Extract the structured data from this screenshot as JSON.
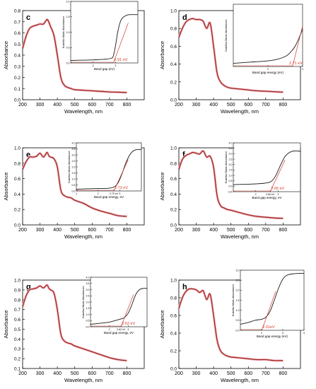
{
  "figure": {
    "colors": {
      "main_curve": "#9e2a1a",
      "main_shadow": "#f2b8c8",
      "inset_curve": "#1a1a1a",
      "tangent": "#d43a2a",
      "axis": "#000000"
    }
  },
  "chart_data": [
    {
      "label": "c",
      "type": "line",
      "xlabel": "Wavelength, nm",
      "ylabel": "Absorbance",
      "xlim": [
        200,
        900
      ],
      "ylim": [
        0.0,
        0.8
      ],
      "xticks": [
        "200",
        "300",
        "400",
        "500",
        "600",
        "700",
        "800"
      ],
      "yticks": [
        "0.0",
        "0.1",
        "0.2",
        "0.3",
        "0.4",
        "0.5",
        "0.6",
        "0.7",
        "0.8"
      ],
      "series": [
        {
          "x": [
            200,
            220,
            240,
            260,
            280,
            300,
            320,
            340,
            350,
            360,
            380,
            400,
            420,
            440,
            460,
            480,
            500,
            550,
            600,
            650,
            700,
            750,
            800
          ],
          "y": [
            0.46,
            0.57,
            0.64,
            0.66,
            0.67,
            0.68,
            0.68,
            0.72,
            0.7,
            0.66,
            0.58,
            0.4,
            0.2,
            0.13,
            0.11,
            0.1,
            0.09,
            0.085,
            0.08,
            0.075,
            0.07,
            0.068,
            0.065
          ]
        }
      ],
      "inset": {
        "xlabel": "Band gap (eV)",
        "ylabel": "Kubelka Munk Absorbance",
        "xlim": [
          1.0,
          4.0
        ],
        "ylim": [
          0.0,
          2.0
        ],
        "xticks": [
          "2",
          "3"
        ],
        "yticks": [
          "0.0",
          "0.5",
          "1.0",
          "1.5",
          "2.0"
        ],
        "annotation": "2.91 eV",
        "annotation_x": 2.91,
        "series": [
          {
            "x": [
              1.0,
              1.5,
              2.0,
              2.5,
              2.8,
              2.9,
              3.0,
              3.1,
              3.2,
              3.3,
              3.5,
              3.7,
              4.0
            ],
            "y": [
              0.08,
              0.09,
              0.1,
              0.12,
              0.15,
              0.22,
              0.55,
              1.0,
              1.3,
              1.45,
              1.55,
              1.57,
              1.57
            ]
          }
        ]
      }
    },
    {
      "label": "d",
      "type": "line",
      "xlabel": "Wavelength, nm",
      "ylabel": "Absorbance",
      "xlim": [
        200,
        900
      ],
      "ylim": [
        0.0,
        1.0
      ],
      "xticks": [
        "200",
        "300",
        "400",
        "500",
        "600",
        "700",
        "800"
      ],
      "yticks": [
        "0.0",
        "0.2",
        "0.4",
        "0.6",
        "0.8",
        "1.0"
      ],
      "series": [
        {
          "x": [
            200,
            220,
            240,
            260,
            280,
            300,
            320,
            340,
            360,
            380,
            400,
            420,
            440,
            460,
            480,
            500,
            550,
            600,
            650,
            700,
            750,
            800
          ],
          "y": [
            0.7,
            0.8,
            0.87,
            0.9,
            0.91,
            0.9,
            0.9,
            0.88,
            0.8,
            0.86,
            0.6,
            0.3,
            0.2,
            0.16,
            0.14,
            0.13,
            0.12,
            0.11,
            0.1,
            0.095,
            0.09,
            0.085
          ]
        }
      ],
      "inset": {
        "xlabel": "Band gap energy (eV)",
        "ylabel": "Kubelka Munk Absorbance",
        "xlim": [
          1.0,
          3.0
        ],
        "ylim": [
          0.0,
          1.0
        ],
        "xticks": [
          "2",
          "3"
        ],
        "yticks": [],
        "annotation": "2.71 eV",
        "annotation_x": 2.71,
        "series": [
          {
            "x": [
              1.0,
              1.5,
              2.0,
              2.3,
              2.5,
              2.6,
              2.7,
              2.8,
              2.9,
              3.0
            ],
            "y": [
              0.05,
              0.07,
              0.09,
              0.12,
              0.16,
              0.2,
              0.26,
              0.34,
              0.46,
              0.6
            ]
          }
        ]
      }
    },
    {
      "label": "e",
      "type": "line",
      "xlabel": "Wavelength, nm",
      "ylabel": "Absorbance",
      "xlim": [
        200,
        900
      ],
      "ylim": [
        0.0,
        1.0
      ],
      "xticks": [
        "200",
        "300",
        "400",
        "500",
        "600",
        "700",
        "800"
      ],
      "yticks": [
        "0.0",
        "0.2",
        "0.4",
        "0.6",
        "0.8",
        "1.0"
      ],
      "series": [
        {
          "x": [
            200,
            220,
            240,
            260,
            280,
            300,
            320,
            340,
            350,
            360,
            380,
            400,
            420,
            440,
            460,
            480,
            500,
            550,
            600,
            650,
            700,
            750,
            800
          ],
          "y": [
            0.72,
            0.82,
            0.88,
            0.88,
            0.89,
            0.93,
            0.88,
            0.94,
            0.9,
            0.88,
            0.86,
            0.75,
            0.45,
            0.38,
            0.36,
            0.35,
            0.32,
            0.28,
            0.22,
            0.18,
            0.15,
            0.12,
            0.11
          ]
        }
      ],
      "inset": {
        "xlabel": "Band gap energy, eV",
        "ylabel": "Kubelka Munk Absorbance",
        "xlim": [
          1.0,
          4.0
        ],
        "ylim": [
          0.0,
          4.0
        ],
        "xticks": [
          "1",
          "2",
          "2.73 eV",
          "3"
        ],
        "yticks": [
          "0.0",
          "0.5",
          "1.0",
          "1.5",
          "2.0",
          "2.5",
          "3.0",
          "3.5",
          "4.0"
        ],
        "annotation": "2.73 eV",
        "annotation_x": 2.73,
        "series": [
          {
            "x": [
              1.0,
              1.5,
              2.0,
              2.4,
              2.7,
              2.9,
              3.1,
              3.3,
              3.5,
              3.7,
              3.9,
              4.0
            ],
            "y": [
              0.15,
              0.18,
              0.2,
              0.22,
              0.3,
              0.6,
              1.4,
              2.4,
              3.1,
              3.4,
              3.45,
              3.45
            ]
          }
        ]
      }
    },
    {
      "label": "f",
      "type": "line",
      "xlabel": "Wavelength, nm",
      "ylabel": "Absorbance",
      "xlim": [
        200,
        900
      ],
      "ylim": [
        0.0,
        1.0
      ],
      "xticks": [
        "200",
        "300",
        "400",
        "500",
        "600",
        "700",
        "800"
      ],
      "yticks": [
        "0.0",
        "0.2",
        "0.4",
        "0.6",
        "0.8",
        "1.0"
      ],
      "series": [
        {
          "x": [
            200,
            220,
            240,
            260,
            280,
            300,
            320,
            340,
            360,
            380,
            400,
            420,
            440,
            460,
            480,
            500,
            550,
            600,
            650,
            700,
            750,
            800
          ],
          "y": [
            0.72,
            0.85,
            0.9,
            0.92,
            0.94,
            0.93,
            0.92,
            0.96,
            0.88,
            0.89,
            0.75,
            0.38,
            0.25,
            0.22,
            0.2,
            0.19,
            0.16,
            0.13,
            0.11,
            0.1,
            0.09,
            0.085
          ]
        }
      ],
      "inset": {
        "xlabel": "Band gap energy, eV",
        "ylabel": "Kubelka Munk Absorbance",
        "xlim": [
          1.0,
          4.0
        ],
        "ylim": [
          -0.5,
          4.0
        ],
        "xticks": [
          "2",
          "2.65 eV",
          "3"
        ],
        "yticks": [
          "-0.5",
          "0.0",
          "0.5",
          "1.0",
          "1.5",
          "2.0",
          "2.5",
          "3.0",
          "3.5",
          "4.0"
        ],
        "annotation": "2.65 eV",
        "annotation_x": 2.65,
        "series": [
          {
            "x": [
              1.0,
              1.5,
              2.0,
              2.4,
              2.7,
              2.9,
              3.1,
              3.3,
              3.5,
              3.7,
              3.9,
              4.0
            ],
            "y": [
              0.15,
              0.18,
              0.22,
              0.28,
              0.45,
              1.0,
              1.9,
              2.7,
              3.1,
              3.25,
              3.25,
              3.2
            ]
          }
        ]
      }
    },
    {
      "label": "g",
      "type": "line",
      "xlabel": "Wavelength, nm",
      "ylabel": "Absorbance",
      "xlim": [
        200,
        900
      ],
      "ylim": [
        0.1,
        1.0
      ],
      "xticks": [
        "200",
        "300",
        "400",
        "500",
        "600",
        "700",
        "800"
      ],
      "yticks": [
        "0.1",
        "0.2",
        "0.3",
        "0.4",
        "0.5",
        "0.6",
        "0.7",
        "0.8",
        "0.9",
        "1.0"
      ],
      "series": [
        {
          "x": [
            200,
            220,
            240,
            260,
            280,
            300,
            320,
            340,
            350,
            360,
            380,
            400,
            420,
            440,
            460,
            480,
            500,
            550,
            600,
            650,
            700,
            750,
            800
          ],
          "y": [
            0.73,
            0.84,
            0.9,
            0.91,
            0.92,
            0.94,
            0.92,
            0.95,
            0.92,
            0.9,
            0.87,
            0.7,
            0.45,
            0.38,
            0.36,
            0.35,
            0.33,
            0.3,
            0.27,
            0.24,
            0.21,
            0.19,
            0.18
          ]
        }
      ],
      "inset": {
        "xlabel": "Band gap energy, eV",
        "ylabel": "Kubelka Munk Absorbance",
        "xlim": [
          1.0,
          4.0
        ],
        "ylim": [
          0.0,
          4.0
        ],
        "xticks": [
          "2",
          "2.62 eV",
          "3"
        ],
        "yticks": [
          "0.0",
          "0.5",
          "1.0",
          "1.5",
          "2.0",
          "2.5",
          "3.0",
          "3.5",
          "4.0"
        ],
        "annotation": "2.62 eV",
        "annotation_x": 2.62,
        "series": [
          {
            "x": [
              1.0,
              1.5,
              2.0,
              2.3,
              2.6,
              2.8,
              3.0,
              3.2,
              3.4,
              3.6,
              3.8,
              4.0
            ],
            "y": [
              0.2,
              0.28,
              0.38,
              0.5,
              0.62,
              0.75,
              1.1,
              1.8,
              2.6,
              3.0,
              3.1,
              3.1
            ]
          }
        ]
      }
    },
    {
      "label": "h",
      "type": "line",
      "xlabel": "Wavelength, nm",
      "ylabel": "Absorbance",
      "xlim": [
        200,
        900
      ],
      "ylim": [
        0.0,
        1.0
      ],
      "xticks": [
        "200",
        "300",
        "400",
        "500",
        "600",
        "700",
        "800"
      ],
      "yticks": [
        "0.0",
        "0.2",
        "0.4",
        "0.6",
        "0.8",
        "1.0"
      ],
      "series": [
        {
          "x": [
            200,
            220,
            240,
            260,
            280,
            300,
            320,
            340,
            360,
            380,
            400,
            420,
            440,
            460,
            480,
            500,
            550,
            600,
            650,
            700,
            750,
            800
          ],
          "y": [
            0.68,
            0.8,
            0.87,
            0.9,
            0.9,
            0.89,
            0.86,
            0.88,
            0.78,
            0.84,
            0.6,
            0.32,
            0.2,
            0.16,
            0.14,
            0.13,
            0.12,
            0.11,
            0.1,
            0.1,
            0.09,
            0.09
          ]
        }
      ],
      "inset": {
        "xlabel": "Band gap energy (eV)",
        "ylabel": "Kubelka Munk Absorbance",
        "xlim": [
          1.0,
          4.0
        ],
        "ylim": [
          0.0,
          3.0
        ],
        "xticks": [
          "2",
          "3",
          "4"
        ],
        "yticks": [
          "0.0",
          "0.5",
          "1.0",
          "1.5",
          "2.0",
          "2.5",
          "3.0"
        ],
        "annotation": "2.01eV",
        "annotation_x": 2.01,
        "series": [
          {
            "x": [
              1.0,
              1.4,
              1.7,
              2.0,
              2.2,
              2.4,
              2.6,
              2.8,
              3.0,
              3.2,
              3.5,
              3.8,
              4.0
            ],
            "y": [
              0.3,
              0.4,
              0.5,
              0.55,
              0.65,
              0.95,
              1.5,
              2.1,
              2.55,
              2.75,
              2.82,
              2.84,
              2.84
            ]
          }
        ]
      }
    }
  ]
}
